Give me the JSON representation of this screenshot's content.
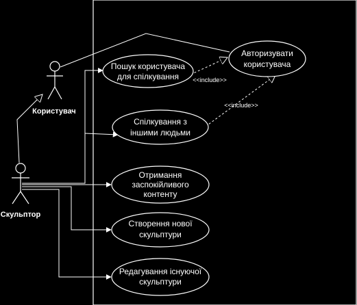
{
  "actors": {
    "user": {
      "name": "Користувач"
    },
    "sculptor": {
      "name": "Скульптор"
    }
  },
  "use_cases": {
    "search": [
      "Пошук користувача",
      "для спілкування"
    ],
    "authorize": [
      "Авторизувати",
      "користувача"
    ],
    "communicate": [
      "Спілкування з",
      "іншими людьми"
    ],
    "receive": [
      "Отримання",
      "заспокійливого",
      "контенту"
    ],
    "create": [
      "Створення нової",
      "скульптури"
    ],
    "edit": [
      "Редагування існуючої",
      "скульптури"
    ]
  },
  "relations": {
    "include_1": "<<include>>",
    "include_2": "<<include>>"
  },
  "colors": {
    "background": "#000000",
    "stroke": "#ffffff",
    "text": "#ffffff"
  }
}
